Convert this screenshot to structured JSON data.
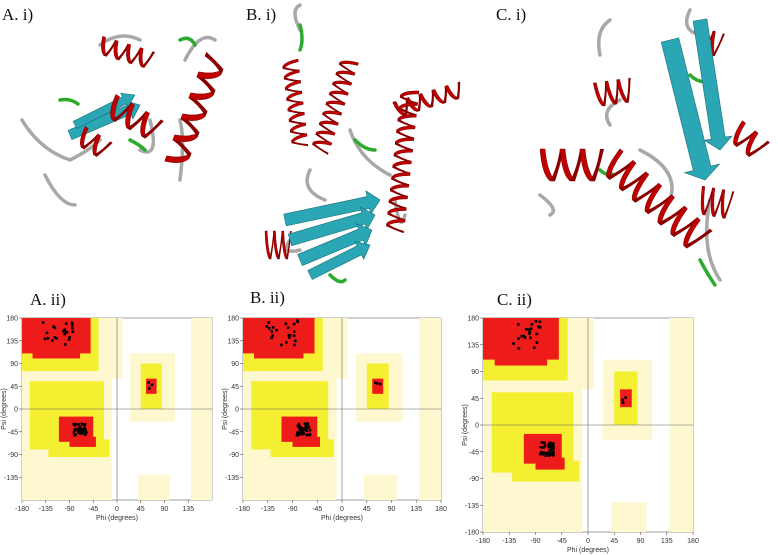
{
  "panels": [
    {
      "label": "A. i)"
    },
    {
      "label": "B. i)"
    },
    {
      "label": "C. i)"
    },
    {
      "label": "A. ii)",
      "xlabel": "Phi (degrees)",
      "ylabel": "Psi (degrees)",
      "xticks": [
        -180,
        -135,
        -90,
        -45,
        0,
        45,
        90,
        135
      ],
      "yticks": [
        180,
        135,
        90,
        45,
        0,
        -45,
        -90,
        -135
      ]
    },
    {
      "label": "B. ii)",
      "xlabel": "Phi (degrees)",
      "ylabel": "Psi (degrees)",
      "xticks": [
        -180,
        -135,
        -90,
        -45,
        0,
        45,
        90,
        135,
        180
      ],
      "yticks": [
        180,
        135,
        90,
        45,
        0,
        -45,
        -90,
        -135
      ]
    },
    {
      "label": "C. ii)",
      "xlabel": "Phi (degrees)",
      "ylabel": "Psi (degrees)",
      "xticks": [
        -180,
        -135,
        -90,
        -45,
        0,
        45,
        90,
        135,
        180
      ],
      "yticks": [
        180,
        135,
        90,
        45,
        0,
        -45,
        -90,
        -135,
        -180
      ]
    }
  ]
}
